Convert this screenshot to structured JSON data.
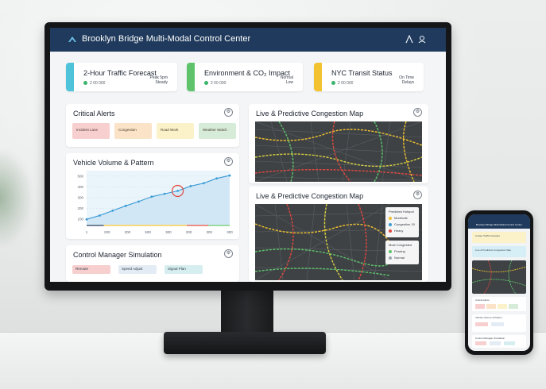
{
  "header": {
    "title": "Brooklyn Bridge Multi-Modal Control Center"
  },
  "kpis": [
    {
      "title": "2-Hour Traffic Forecast",
      "sub": "2 00 000",
      "side1": "Peak 5pm",
      "side2": "Steady",
      "color": "#4fc3d9"
    },
    {
      "title": "Environment & CO₂ Impact",
      "sub": "2 00 000",
      "side1": "Normal",
      "side2": "Low",
      "color": "#5fc36b"
    },
    {
      "title": "NYC Transit Status",
      "sub": "2 00 000",
      "side1": "On Time",
      "side2": "Delays",
      "color": "#f2c230"
    }
  ],
  "alerts": {
    "title": "Critical Alerts",
    "items": [
      {
        "label": "Incident Lane",
        "bg": "#f7cfcf"
      },
      {
        "label": "Congestion",
        "bg": "#fbe3c8"
      },
      {
        "label": "Road Work",
        "bg": "#fbf2c9"
      },
      {
        "label": "Weather Watch",
        "bg": "#d6ecd8"
      }
    ]
  },
  "chart_data": {
    "type": "area",
    "title": "Vehicle Volume & Pattern",
    "x": [
      0,
      1,
      2,
      3,
      4,
      5,
      6,
      7,
      8,
      9,
      10,
      11
    ],
    "values": [
      55,
      95,
      145,
      195,
      240,
      290,
      320,
      350,
      400,
      430,
      480,
      510
    ],
    "yticks": [
      "500",
      "400",
      "300",
      "200",
      "100"
    ],
    "xticks": [
      "1",
      "200",
      "300",
      "500",
      "300",
      "200",
      "300",
      "300"
    ],
    "ylim": [
      0,
      560
    ],
    "highlight_index": 7,
    "colors": {
      "line": "#3a9bd4",
      "fill": "#cfe6f5"
    }
  },
  "simulation": {
    "title": "Control Manager Simulation",
    "buttons": [
      {
        "label": "Reroute",
        "bg": "#f7cfcf"
      },
      {
        "label": "Speed Adjust",
        "bg": "#e3ecf4"
      },
      {
        "label": "Signal Plan",
        "bg": "#d6eef0"
      }
    ]
  },
  "map1": {
    "title": "Live & Predictive Congestion Map"
  },
  "map2": {
    "title": "Live & Predictive Congestion Map",
    "legend1": [
      "Predicted Hotspot",
      "Moderate",
      "Congestion 15",
      "Heavy"
    ],
    "legend2": [
      "Most Congested",
      "Flowing",
      "Normal"
    ]
  },
  "phone": {
    "title": "Brooklyn Bridge Multi-Modal Control Center",
    "card1": "2-Hour Traffic Forecast",
    "card2": "Live & Predictive Congestion Map",
    "alerts": "Critical Alerts",
    "volume": "Vehicle Volume & Pattern",
    "sim": "Control Manager Simulation",
    "side1": "Status"
  },
  "colors": {
    "header": "#1f3a5c",
    "accent": "#3a9bd4"
  }
}
